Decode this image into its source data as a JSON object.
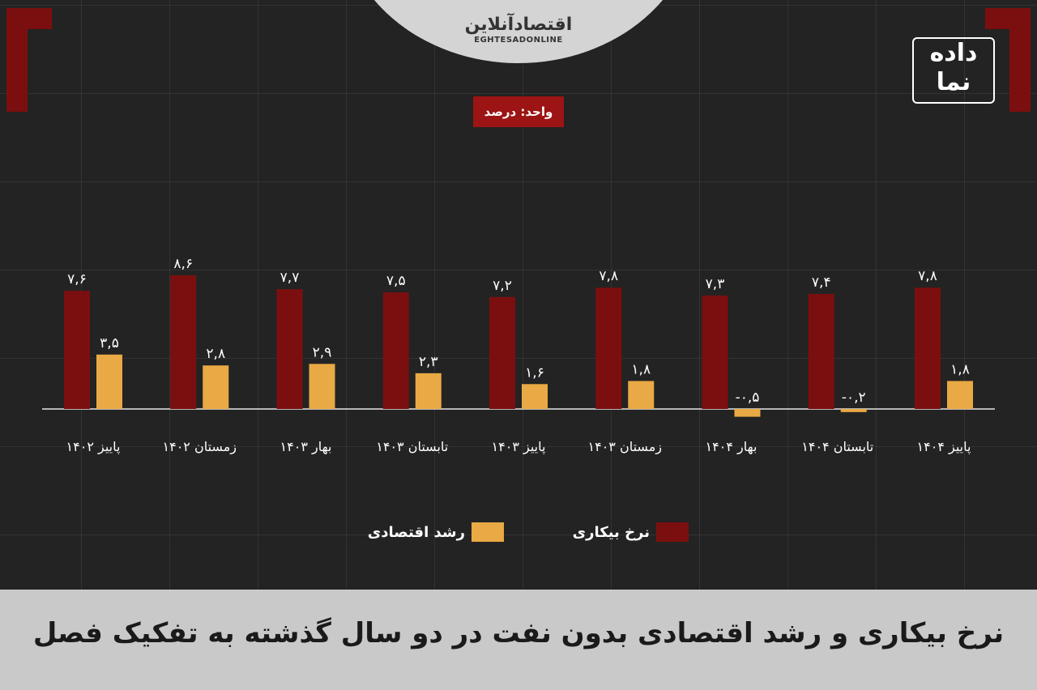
{
  "header": {
    "logo_fa": "اقتصادآنلاین",
    "logo_en": "EGHTESADONLINE",
    "brand_line1": "داده",
    "brand_line2": "نما"
  },
  "unit_label": "واحد: درصد",
  "title": "نرخ بیکاری و رشد اقتصادی بدون نفت در دو سال گذشته به تفکیک فصل",
  "colors": {
    "unemployment": "#7b0f0f",
    "growth": "#e9a944",
    "background": "#232323",
    "accent": "#9c1414"
  },
  "chart_data": {
    "type": "bar",
    "title": "نرخ بیکاری و رشد اقتصادی بدون نفت در دو سال گذشته به تفکیک فصل",
    "xlabel": "",
    "ylabel": "",
    "unit": "واحد: درصد",
    "legend_position": "bottom-center",
    "grid": true,
    "ylim": [
      -1,
      10
    ],
    "categories": [
      "پاییز ۱۴۰۲",
      "زمستان ۱۴۰۲",
      "بهار ۱۴۰۳",
      "تابستان ۱۴۰۳",
      "پاییز ۱۴۰۳",
      "زمستان ۱۴۰۳",
      "بهار ۱۴۰۴",
      "تابستان ۱۴۰۴",
      "پاییز ۱۴۰۴"
    ],
    "series": [
      {
        "name": "نرخ بیکاری",
        "values": [
          7.6,
          8.6,
          7.7,
          7.5,
          7.2,
          7.8,
          7.3,
          7.4,
          7.8
        ],
        "labels": [
          "۷,۶",
          "۸,۶",
          "۷,۷",
          "۷,۵",
          "۷,۲",
          "۷,۸",
          "۷,۳",
          "۷,۴",
          "۷,۸"
        ]
      },
      {
        "name": "رشد اقتصادی",
        "values": [
          3.5,
          2.8,
          2.9,
          2.3,
          1.6,
          1.8,
          -0.5,
          -0.2,
          1.8
        ],
        "labels": [
          "۳,۵",
          "۲,۸",
          "۲,۹",
          "۲,۳",
          "۱,۶",
          "۱,۸",
          "-۰,۵",
          "-۰,۲",
          "۱,۸"
        ]
      }
    ]
  }
}
